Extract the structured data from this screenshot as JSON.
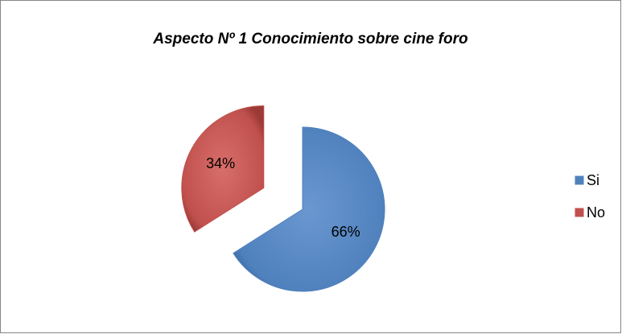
{
  "chart_data": {
    "type": "pie",
    "title": "Aspecto Nº 1 Conocimiento sobre cine foro",
    "categories": [
      "Si",
      "No"
    ],
    "values": [
      66,
      34
    ],
    "value_labels": [
      "66%",
      "34%"
    ],
    "colors": [
      "#4f81bd",
      "#c0504d"
    ],
    "legend": "right"
  }
}
